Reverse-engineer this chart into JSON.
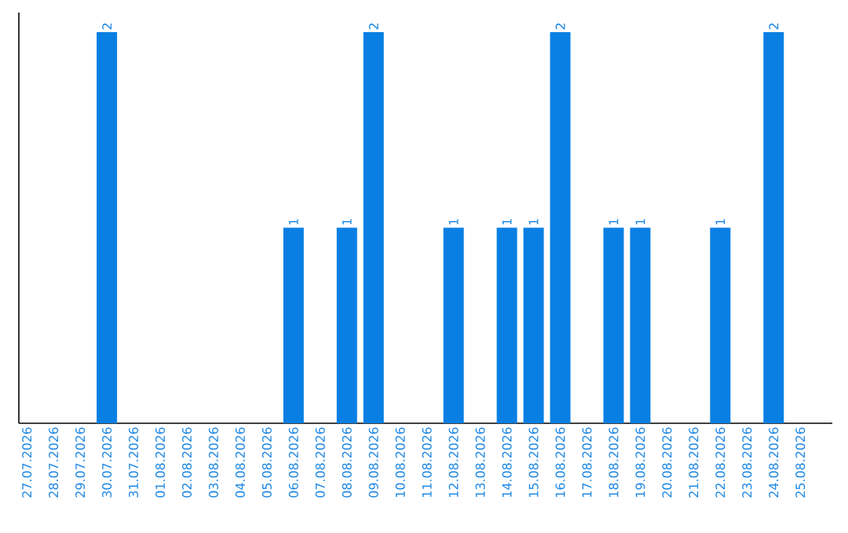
{
  "chart_data": {
    "type": "bar",
    "categories": [
      "27.07.2026",
      "28.07.2026",
      "29.07.2026",
      "30.07.2026",
      "31.07.2026",
      "01.08.2026",
      "02.08.2026",
      "03.08.2026",
      "04.08.2026",
      "05.08.2026",
      "06.08.2026",
      "07.08.2026",
      "08.08.2026",
      "09.08.2026",
      "10.08.2026",
      "11.08.2026",
      "12.08.2026",
      "13.08.2026",
      "14.08.2026",
      "15.08.2026",
      "16.08.2026",
      "17.08.2026",
      "18.08.2026",
      "19.08.2026",
      "20.08.2026",
      "21.08.2026",
      "22.08.2026",
      "23.08.2026",
      "24.08.2026",
      "25.08.2026"
    ],
    "values": [
      0,
      0,
      0,
      2,
      0,
      0,
      0,
      0,
      0,
      0,
      1,
      0,
      1,
      2,
      0,
      0,
      1,
      0,
      1,
      1,
      2,
      0,
      1,
      1,
      0,
      0,
      1,
      0,
      2,
      0
    ],
    "value_labels": [
      null,
      null,
      null,
      "2",
      null,
      null,
      null,
      null,
      null,
      null,
      "1",
      null,
      "1",
      "2",
      null,
      null,
      "1",
      null,
      "1",
      "1",
      "2",
      null,
      "1",
      "1",
      null,
      null,
      "1",
      null,
      "2",
      null
    ],
    "color": "#0a7fe3",
    "ylim": [
      0,
      2.1
    ]
  }
}
